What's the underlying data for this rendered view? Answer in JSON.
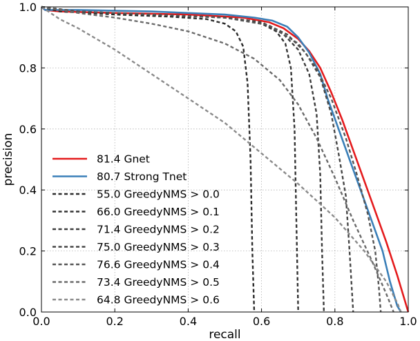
{
  "chart_data": {
    "type": "line",
    "xlabel": "recall",
    "ylabel": "precision",
    "xlim": [
      0.0,
      1.0
    ],
    "ylim": [
      0.0,
      1.0
    ],
    "x_ticks": [
      "0.0",
      "0.2",
      "0.4",
      "0.6",
      "0.8",
      "1.0"
    ],
    "y_ticks": [
      "0.0",
      "0.2",
      "0.4",
      "0.6",
      "0.8",
      "1.0"
    ],
    "grid": true,
    "legend_position": "bottom-left",
    "series": [
      {
        "name": "81.4 Gnet",
        "color": "#e41a1c",
        "dash": "solid",
        "points": [
          [
            0.0,
            1.0
          ],
          [
            0.01,
            0.99
          ],
          [
            0.05,
            0.985
          ],
          [
            0.2,
            0.98
          ],
          [
            0.4,
            0.975
          ],
          [
            0.55,
            0.965
          ],
          [
            0.62,
            0.95
          ],
          [
            0.66,
            0.93
          ],
          [
            0.7,
            0.895
          ],
          [
            0.73,
            0.855
          ],
          [
            0.76,
            0.8
          ],
          [
            0.79,
            0.72
          ],
          [
            0.82,
            0.63
          ],
          [
            0.85,
            0.53
          ],
          [
            0.88,
            0.43
          ],
          [
            0.91,
            0.33
          ],
          [
            0.94,
            0.23
          ],
          [
            0.97,
            0.12
          ],
          [
            0.99,
            0.04
          ],
          [
            1.0,
            0.0
          ]
        ]
      },
      {
        "name": "80.7 Strong Tnet",
        "color": "#3a7fb8",
        "dash": "solid",
        "points": [
          [
            0.0,
            1.0
          ],
          [
            0.01,
            0.99
          ],
          [
            0.1,
            0.99
          ],
          [
            0.3,
            0.985
          ],
          [
            0.5,
            0.975
          ],
          [
            0.58,
            0.965
          ],
          [
            0.63,
            0.955
          ],
          [
            0.67,
            0.935
          ],
          [
            0.7,
            0.9
          ],
          [
            0.73,
            0.85
          ],
          [
            0.76,
            0.78
          ],
          [
            0.78,
            0.7
          ],
          [
            0.81,
            0.6
          ],
          [
            0.84,
            0.5
          ],
          [
            0.87,
            0.4
          ],
          [
            0.9,
            0.3
          ],
          [
            0.93,
            0.2
          ],
          [
            0.95,
            0.1
          ],
          [
            0.97,
            0.02
          ],
          [
            0.98,
            0.0
          ]
        ]
      },
      {
        "name": "55.0 GreedyNMS > 0.0",
        "color": "#2b2b2b",
        "dash": "dashed",
        "points": [
          [
            0.0,
            1.0
          ],
          [
            0.05,
            0.985
          ],
          [
            0.2,
            0.975
          ],
          [
            0.35,
            0.968
          ],
          [
            0.45,
            0.96
          ],
          [
            0.5,
            0.945
          ],
          [
            0.53,
            0.92
          ],
          [
            0.55,
            0.87
          ],
          [
            0.562,
            0.75
          ],
          [
            0.57,
            0.5
          ],
          [
            0.575,
            0.2
          ],
          [
            0.58,
            0.0
          ]
        ]
      },
      {
        "name": "66.0 GreedyNMS > 0.1",
        "color": "#333333",
        "dash": "dashed",
        "points": [
          [
            0.0,
            1.0
          ],
          [
            0.1,
            0.985
          ],
          [
            0.3,
            0.975
          ],
          [
            0.5,
            0.965
          ],
          [
            0.6,
            0.945
          ],
          [
            0.64,
            0.92
          ],
          [
            0.665,
            0.88
          ],
          [
            0.68,
            0.8
          ],
          [
            0.69,
            0.6
          ],
          [
            0.695,
            0.3
          ],
          [
            0.7,
            0.0
          ]
        ]
      },
      {
        "name": "71.4 GreedyNMS > 0.2",
        "color": "#3c3c3c",
        "dash": "dashed",
        "points": [
          [
            0.0,
            1.0
          ],
          [
            0.1,
            0.985
          ],
          [
            0.3,
            0.975
          ],
          [
            0.5,
            0.965
          ],
          [
            0.6,
            0.95
          ],
          [
            0.66,
            0.91
          ],
          [
            0.7,
            0.86
          ],
          [
            0.73,
            0.78
          ],
          [
            0.75,
            0.65
          ],
          [
            0.76,
            0.45
          ],
          [
            0.765,
            0.2
          ],
          [
            0.77,
            0.0
          ]
        ]
      },
      {
        "name": "75.0 GreedyNMS > 0.3",
        "color": "#474747",
        "dash": "dashed",
        "points": [
          [
            0.0,
            1.0
          ],
          [
            0.1,
            0.985
          ],
          [
            0.3,
            0.975
          ],
          [
            0.5,
            0.965
          ],
          [
            0.6,
            0.95
          ],
          [
            0.67,
            0.91
          ],
          [
            0.72,
            0.85
          ],
          [
            0.76,
            0.77
          ],
          [
            0.79,
            0.65
          ],
          [
            0.81,
            0.52
          ],
          [
            0.83,
            0.38
          ],
          [
            0.84,
            0.2
          ],
          [
            0.85,
            0.0
          ]
        ]
      },
      {
        "name": "76.6 GreedyNMS > 0.4",
        "color": "#555555",
        "dash": "dashed",
        "points": [
          [
            0.0,
            1.0
          ],
          [
            0.1,
            0.985
          ],
          [
            0.3,
            0.975
          ],
          [
            0.5,
            0.965
          ],
          [
            0.62,
            0.94
          ],
          [
            0.7,
            0.88
          ],
          [
            0.75,
            0.8
          ],
          [
            0.79,
            0.7
          ],
          [
            0.83,
            0.57
          ],
          [
            0.86,
            0.45
          ],
          [
            0.89,
            0.32
          ],
          [
            0.91,
            0.2
          ],
          [
            0.92,
            0.08
          ],
          [
            0.925,
            0.0
          ]
        ]
      },
      {
        "name": "73.4 GreedyNMS > 0.5",
        "color": "#6a6a6a",
        "dash": "dashed",
        "points": [
          [
            0.0,
            1.0
          ],
          [
            0.1,
            0.98
          ],
          [
            0.2,
            0.965
          ],
          [
            0.3,
            0.945
          ],
          [
            0.4,
            0.92
          ],
          [
            0.5,
            0.88
          ],
          [
            0.58,
            0.83
          ],
          [
            0.65,
            0.76
          ],
          [
            0.7,
            0.68
          ],
          [
            0.75,
            0.57
          ],
          [
            0.8,
            0.44
          ],
          [
            0.85,
            0.3
          ],
          [
            0.9,
            0.17
          ],
          [
            0.94,
            0.06
          ],
          [
            0.96,
            0.0
          ]
        ]
      },
      {
        "name": "64.8 GreedyNMS > 0.6",
        "color": "#8a8a8a",
        "dash": "dashed",
        "points": [
          [
            0.0,
            1.0
          ],
          [
            0.05,
            0.96
          ],
          [
            0.1,
            0.93
          ],
          [
            0.2,
            0.86
          ],
          [
            0.3,
            0.78
          ],
          [
            0.4,
            0.7
          ],
          [
            0.5,
            0.62
          ],
          [
            0.6,
            0.52
          ],
          [
            0.7,
            0.42
          ],
          [
            0.8,
            0.31
          ],
          [
            0.88,
            0.2
          ],
          [
            0.94,
            0.1
          ],
          [
            0.97,
            0.03
          ],
          [
            0.98,
            0.0
          ]
        ]
      }
    ]
  }
}
